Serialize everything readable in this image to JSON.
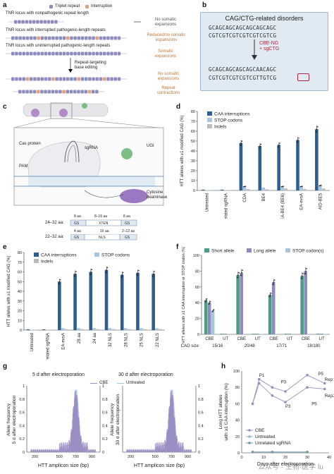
{
  "panel_a": {
    "label": "a",
    "legend_triplet": "Triplet repeat",
    "legend_interruption": "Interruption",
    "rows": [
      {
        "title": "TNR locus with nonpathogenic repeat length",
        "outcome": "No somatic\nexpansions"
      },
      {
        "title": "TNR locus with interrupted pathogenic-length repeats",
        "outcome": "Reduced/no somatic\nexpansions"
      },
      {
        "title": "TNR locus with uninterrupted pathogenic-length repeats",
        "outcome": "Somatic\nexpansions"
      }
    ],
    "arrow_text": "Repeat-targeting\nbase editing",
    "after_outcomes": [
      "No somatic\nexpansions",
      "Repeat\ncontractions"
    ]
  },
  "panel_b": {
    "label": "b",
    "title": "CAG/CTG-related disorders",
    "seq_top1": "GCAGCAGCAGCAGCAGCAGC",
    "seq_bot1": "CGTCGTCGTCGTCGTCGTCG",
    "editor": "CBE-NG\n+ sgCTG",
    "seq_top2": "GCAGCAGCAGCAGCAACAGC",
    "seq_bot2": "CGTCGTCGTCGTCGTTGTCG"
  },
  "panel_c": {
    "label": "c",
    "cas_protein": "Cas protein",
    "sgrna": "sgRNA",
    "ugi": "UGI",
    "pam": "PAM",
    "deaminase": "Cytosine\ndeaminase",
    "linker_top": "24–32 aa:",
    "linker_bot": "22–32 aa:",
    "xten_segments": [
      "8 aa",
      "8–16 aa",
      "8 aa"
    ],
    "xten_mid": "XTEN",
    "gs": "GS",
    "nls_segments": [
      "4 aa",
      "16 aa",
      "2–12 aa"
    ],
    "nls_mid": "NLS"
  },
  "panel_d": {
    "label": "d",
    "legend": [
      "CAA interruptions",
      "STOP codons",
      "Indels"
    ]
  },
  "panel_e": {
    "label": "e",
    "legend": [
      "CAA interruptions",
      "STOP codons",
      "Indels"
    ]
  },
  "panel_f": {
    "label": "f",
    "legend": [
      "Short allele",
      "Long allele",
      "STOP codon(s)"
    ]
  },
  "panel_g": {
    "label": "g",
    "title_left": "5 d after electroporation",
    "title_right": "30 d after electroporation",
    "legend_cbe": "CBE",
    "legend_untreated": "Untreated"
  },
  "panel_h": {
    "label": "h",
    "legend": [
      "CBE",
      "Untreated",
      "Unrelated sgRNA"
    ],
    "point_labels": [
      "P1",
      "P3",
      "P5",
      "Rep1",
      "P3",
      "P5",
      "Rep2"
    ]
  },
  "watermark": "公众号 · 生物·医学 lu",
  "chart_data": [
    {
      "type": "bar",
      "panel": "d",
      "categories": [
        "Untreated",
        "Unrelated sgRNA",
        "CDA",
        "BE4",
        "EA-BE4 (BE6)",
        "EA-evoA",
        "AID-BE5"
      ],
      "series": [
        {
          "name": "CAA interruptions",
          "values": [
            0.8,
            0.8,
            48,
            45,
            46,
            51,
            62
          ]
        },
        {
          "name": "STOP codons",
          "values": [
            0.3,
            0.3,
            4,
            3,
            4,
            4,
            5
          ]
        },
        {
          "name": "Indels",
          "values": [
            0.3,
            0.3,
            1.5,
            1.2,
            2,
            1.5,
            2
          ]
        }
      ],
      "ylabel": "HTT alleles with ≥1 modified CAG (%)",
      "ylim": [
        0,
        80
      ],
      "yticks": [
        0,
        10,
        20,
        30,
        40,
        50,
        60,
        70,
        80
      ]
    },
    {
      "type": "bar",
      "panel": "e",
      "categories": [
        "Untreated",
        "Unrelated sgRNA",
        "EA-evoA",
        "28 aa",
        "24 aa",
        "32 NLS",
        "28 NLS",
        "25 NLS",
        "22 NLS"
      ],
      "series": [
        {
          "name": "CAA interruptions",
          "values": [
            0.8,
            0.8,
            50,
            58,
            60,
            62,
            57,
            59,
            58
          ]
        },
        {
          "name": "STOP codons",
          "values": [
            0.3,
            0.3,
            2,
            2,
            2,
            2,
            2,
            2,
            2
          ]
        },
        {
          "name": "Indels",
          "values": [
            0.3,
            0.3,
            1,
            1,
            1,
            1,
            1,
            1,
            1
          ]
        }
      ],
      "ylabel": "HTT alleles with ≥1 modified CAG (%)",
      "ylim": [
        0,
        80
      ],
      "yticks": [
        0,
        10,
        20,
        30,
        40,
        50,
        60,
        70,
        80
      ]
    },
    {
      "type": "bar",
      "panel": "f",
      "categories": [
        "CBE 15/16",
        "UT 15/16",
        "CBE 20/48",
        "UT 20/48",
        "CBE 17/71",
        "UT 17/71",
        "CBE 18/180",
        "UT 18/180"
      ],
      "tick_top": [
        "CBE",
        "UT",
        "CBE",
        "UT",
        "CBE",
        "UT",
        "CBE",
        "UT"
      ],
      "cag_size_label": "CAG size",
      "cag_sizes": [
        "15/16",
        "20/48",
        "17/71",
        "18/180"
      ],
      "series": [
        {
          "name": "Short allele",
          "values": [
            43,
            0.8,
            75,
            0.8,
            50,
            0.8,
            74,
            0.8
          ]
        },
        {
          "name": "Long allele",
          "values": [
            40,
            0.8,
            78,
            0.8,
            66,
            0.8,
            80,
            0.8
          ]
        },
        {
          "name": "STOP codon(s)",
          "values": [
            30,
            0.5,
            0.5,
            0.5,
            0.5,
            0.5,
            0.5,
            0.5
          ]
        }
      ],
      "ylabel": "HTT alleles with ≥1 CAA interruption or STOP codon (%)",
      "ylim": [
        0,
        100
      ],
      "yticks": [
        0,
        20,
        40,
        60,
        80,
        100
      ]
    },
    {
      "type": "area",
      "panel": "g-left",
      "xlabel": "HTT amplicon size (bp)",
      "ylabel": "Allele frequency\n5 d after electroporation",
      "ylabel_right": "Allele frequency\n30 d after electroporation",
      "xticks": [
        200,
        500,
        700,
        900
      ],
      "yticks_left": [
        0,
        0.2,
        0.4,
        0.6,
        0.8,
        1.0
      ],
      "yticks_right": [
        0,
        0.2,
        0.4,
        0.6,
        0.8,
        1.0
      ],
      "ylim": [
        0,
        1.0
      ]
    },
    {
      "type": "area",
      "panel": "g-right",
      "xlabel": "HTT amplicon size (bp)",
      "ylabel": "Allele frequency\n30 d after electroporation",
      "xticks": [
        200,
        500,
        700,
        900
      ],
      "yticks": [
        0,
        0.2,
        0.4,
        0.6,
        0.8,
        1.0
      ],
      "ylim": [
        0,
        1.0
      ]
    },
    {
      "type": "line",
      "panel": "h",
      "xlabel": "Days after electroporation",
      "ylabel": "Long HTT alleles with ≥1 CAA interruption (%)",
      "xticks": [
        0,
        10,
        20,
        30,
        40
      ],
      "yticks": [
        0,
        20,
        40,
        60,
        80,
        100
      ],
      "xlim": [
        0,
        40
      ],
      "ylim": [
        0,
        100
      ],
      "series": [
        {
          "name": "CBE",
          "x": [
            5,
            8,
            14,
            20,
            30,
            38
          ],
          "y": [
            60,
            90,
            80,
            75,
            95,
            85
          ]
        },
        {
          "name": "CBE",
          "x": [
            5,
            8,
            14,
            20,
            30,
            38
          ],
          "y": [
            60,
            85,
            70,
            62,
            80,
            78
          ]
        },
        {
          "name": "Untreated",
          "x": [
            5,
            14,
            30
          ],
          "y": [
            1,
            1,
            1
          ]
        },
        {
          "name": "Unrelated sgRNA",
          "x": [
            5,
            14,
            30
          ],
          "y": [
            1,
            1,
            1
          ]
        }
      ]
    }
  ]
}
